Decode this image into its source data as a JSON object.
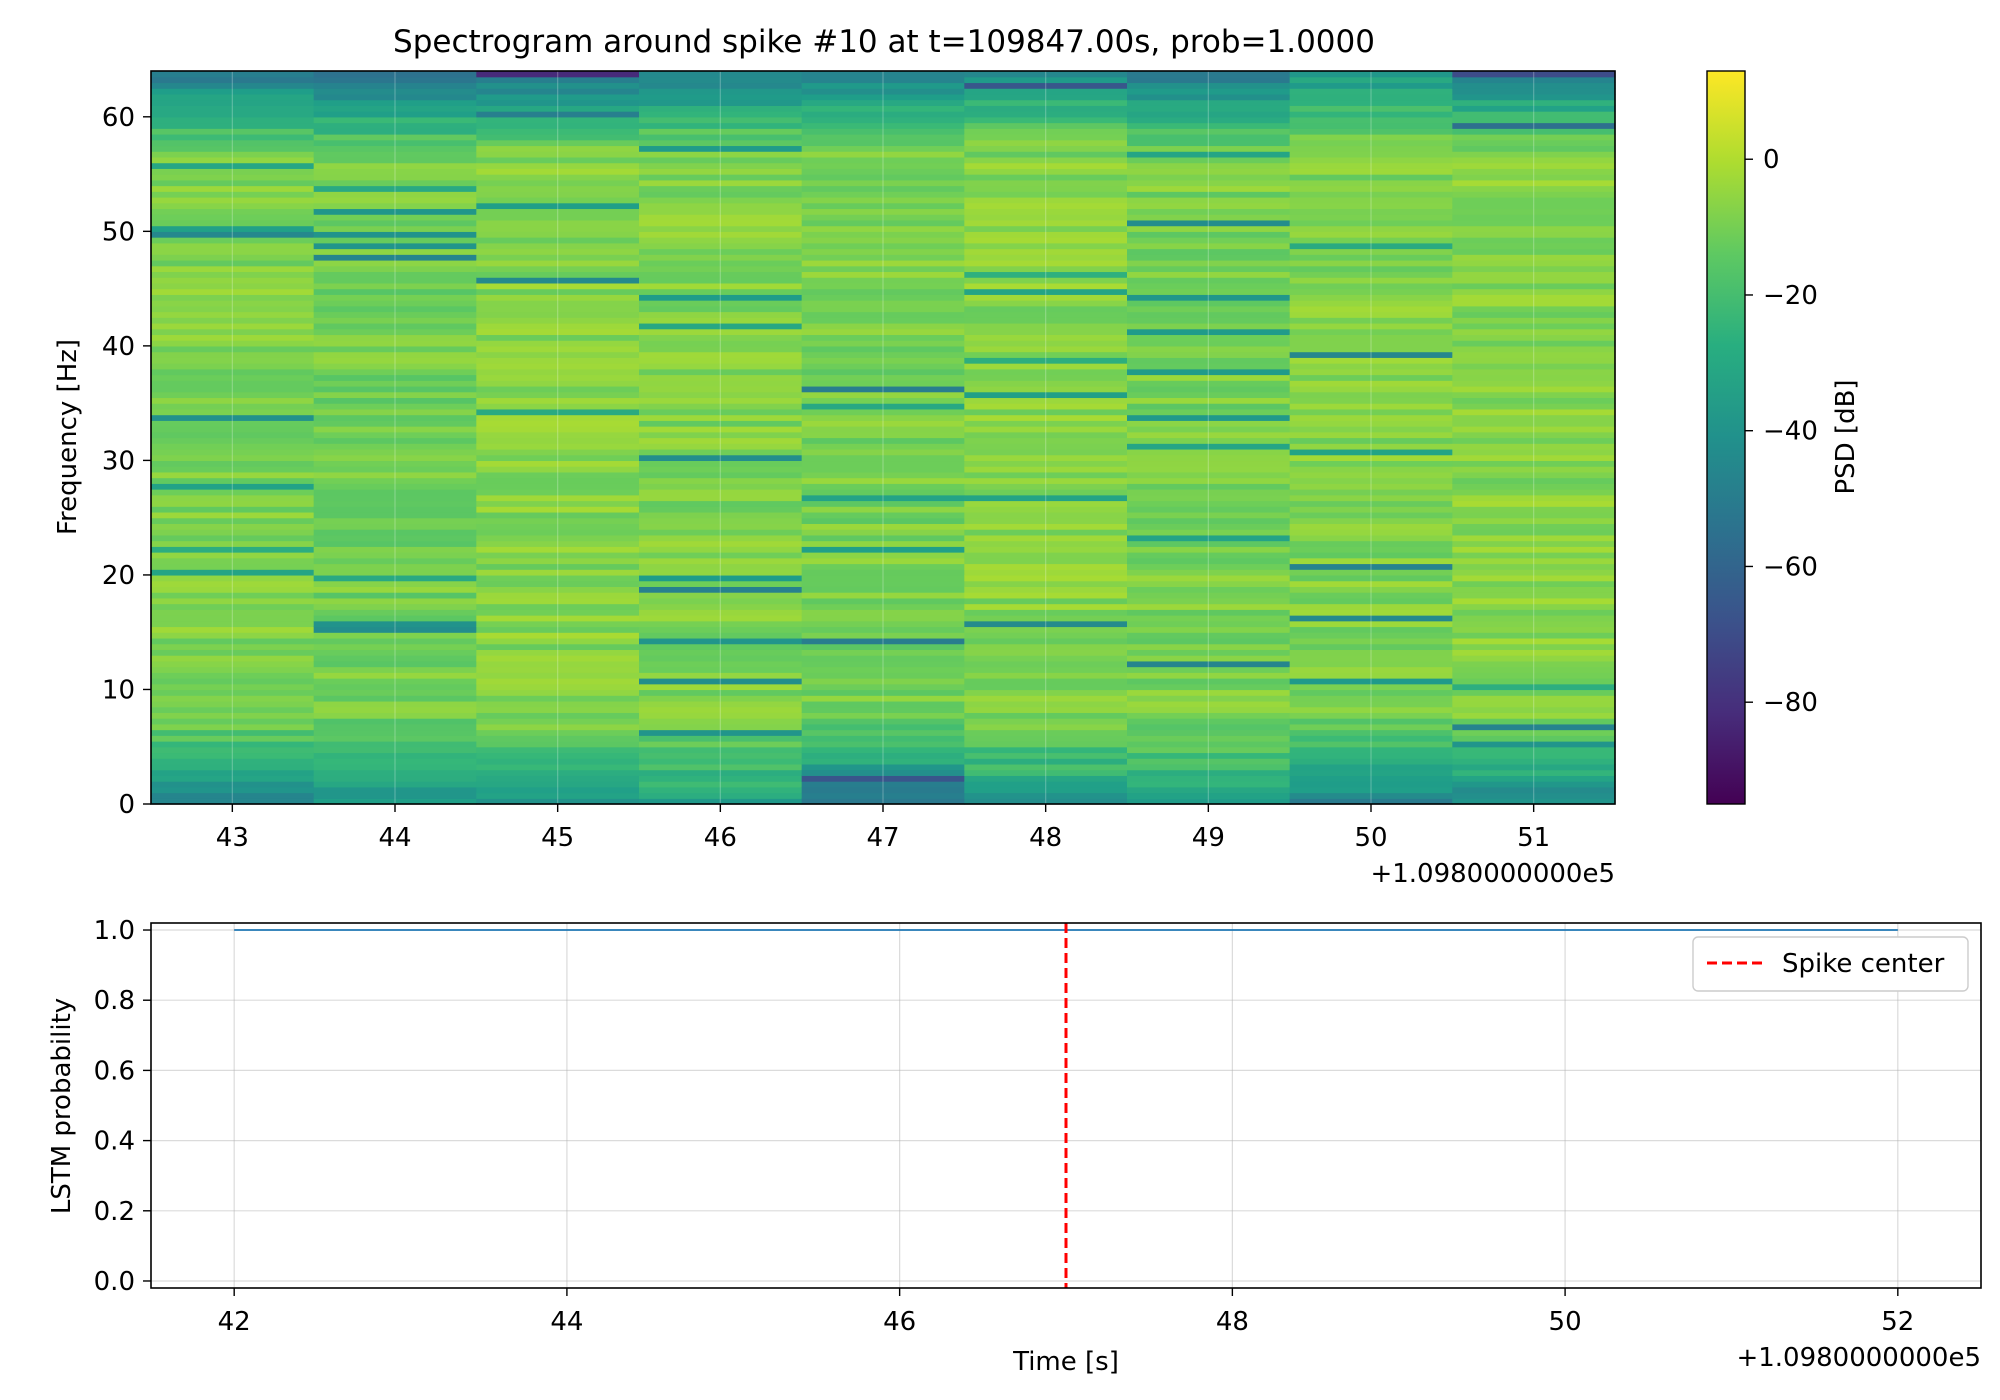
{
  "chart_data": [
    {
      "type": "heatmap",
      "title": "Spectrogram around spike #10 at t=109847.00s, prob=1.0000",
      "xlabel": "",
      "ylabel": "Frequency [Hz]",
      "x_offset_label": "+1.0980000000e5",
      "x": [
        109843,
        109844,
        109845,
        109846,
        109847,
        109848,
        109849,
        109850,
        109851
      ],
      "xlim": [
        109842.5,
        109851.5
      ],
      "xticks": [
        43,
        44,
        45,
        46,
        47,
        48,
        49,
        50,
        51
      ],
      "ylim": [
        0,
        64
      ],
      "yticks": [
        0,
        10,
        20,
        30,
        40,
        50,
        60
      ],
      "colormap": "viridis",
      "colorbar": {
        "label": "PSD [dB]",
        "range": [
          -95,
          13
        ],
        "ticks": [
          "0",
          "−20",
          "−40",
          "−60",
          "−80"
        ],
        "tick_values": [
          0,
          -20,
          -40,
          -60,
          -80
        ]
      },
      "frequency_bins": 128,
      "column_profile_db": [
        {
          "t": 109843,
          "low_freq_db": -45,
          "mid_band_db": -8,
          "high_freq_db": -55
        },
        {
          "t": 109844,
          "low_freq_db": -40,
          "mid_band_db": -10,
          "high_freq_db": -62
        },
        {
          "t": 109845,
          "low_freq_db": -35,
          "mid_band_db": -7,
          "high_freq_db": -58
        },
        {
          "t": 109846,
          "low_freq_db": -33,
          "mid_band_db": -8,
          "high_freq_db": -52
        },
        {
          "t": 109847,
          "low_freq_db": -55,
          "mid_band_db": -9,
          "high_freq_db": -50
        },
        {
          "t": 109848,
          "low_freq_db": -38,
          "mid_band_db": -7,
          "high_freq_db": -45
        },
        {
          "t": 109849,
          "low_freq_db": -32,
          "mid_band_db": -9,
          "high_freq_db": -55
        },
        {
          "t": 109850,
          "low_freq_db": -48,
          "mid_band_db": -8,
          "high_freq_db": -40
        },
        {
          "t": 109851,
          "low_freq_db": -45,
          "mid_band_db": -7,
          "high_freq_db": -50
        }
      ]
    },
    {
      "type": "line",
      "xlabel": "Time [s]",
      "ylabel": "LSTM probability",
      "x_offset_label": "+1.0980000000e5",
      "xlim": [
        109841.5,
        109852.5
      ],
      "ylim": [
        -0.02,
        1.02
      ],
      "xticks": [
        42,
        44,
        46,
        48,
        50,
        52
      ],
      "yticks": [
        "0.0",
        "0.2",
        "0.4",
        "0.6",
        "0.8",
        "1.0"
      ],
      "ytick_values": [
        0.0,
        0.2,
        0.4,
        0.6,
        0.8,
        1.0
      ],
      "grid": true,
      "legend_position": "top-right",
      "series": [
        {
          "values_x": [
            109842,
            109852
          ],
          "values_y": [
            1.0,
            1.0
          ],
          "color": "#1f77b4"
        },
        {
          "name": "Spike center",
          "type": "vline",
          "x": 109847,
          "color": "#ff0000",
          "style": "dashed"
        }
      ]
    }
  ]
}
